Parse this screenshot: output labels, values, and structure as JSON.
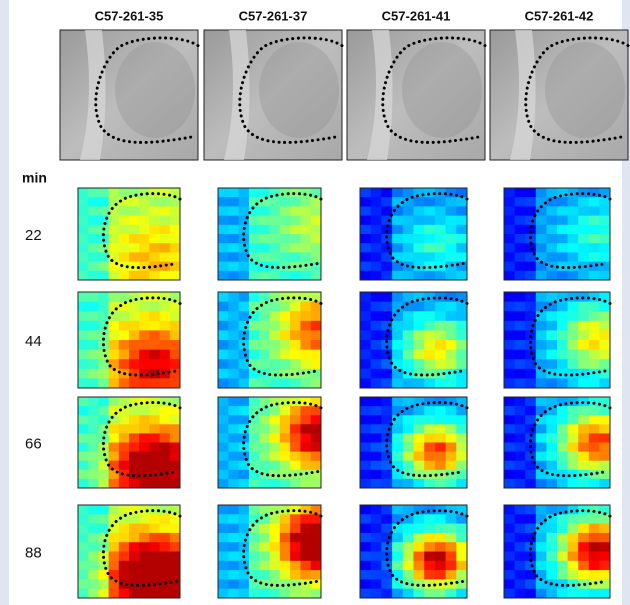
{
  "columns": [
    "C57-261-35",
    "C57-261-37",
    "C57-261-41",
    "C57-261-42"
  ],
  "time_unit": "min",
  "rows": [
    22,
    44,
    66,
    88
  ]
}
